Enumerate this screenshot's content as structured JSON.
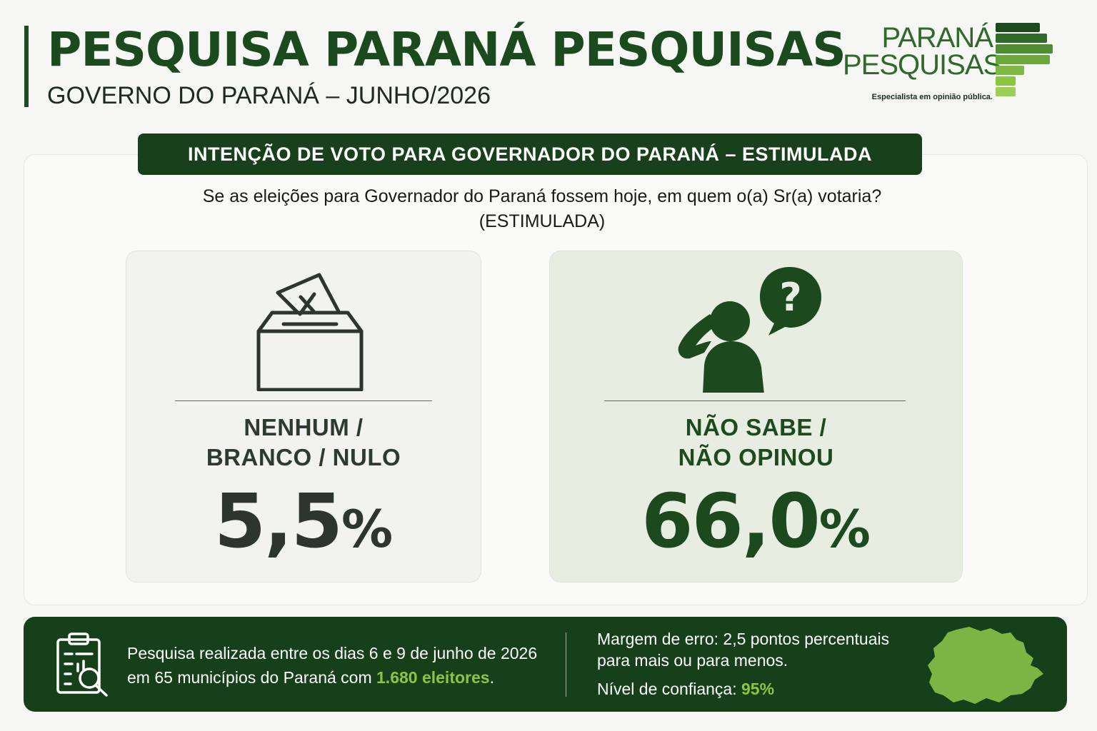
{
  "header": {
    "title": "PESQUISA PARANÁ PESQUISAS",
    "subtitle": "GOVERNO DO PARANÁ – JUNHO/2026"
  },
  "logo": {
    "line1": "PARANÁ",
    "line2": "PESQUISAS",
    "tagline": "Especialista em opinião pública."
  },
  "banner": {
    "title": "INTENÇÃO DE VOTO PARA GOVERNADOR DO PARANÁ – ESTIMULADA"
  },
  "question": {
    "line1": "Se as eleições para Governador do Paraná fossem hoje, em quem o(a) Sr(a) votaria?",
    "line2": "(ESTIMULADA)"
  },
  "cards": [
    {
      "icon": "ballot-box-icon",
      "label_line1": "NENHUM /",
      "label_line2": "BRANCO / NULO",
      "value": "5,5",
      "unit": "%"
    },
    {
      "icon": "confused-person-question-icon",
      "label_line1": "NÃO SABE /",
      "label_line2": "NÃO OPINOU",
      "value": "66,0",
      "unit": "%"
    }
  ],
  "footer": {
    "icon": "clipboard-search-icon",
    "line1": "Pesquisa realizada entre os dias 6 e 9 de junho de 2026",
    "line2_prefix": "em 65 municípios do Paraná com ",
    "line2_highlight": "1.680 eleitores",
    "line2_suffix": ".",
    "margin_text": "Margem de erro: 2,5 pontos percentuais para mais ou para menos.",
    "confidence_label": "Nível de confiança: ",
    "confidence_value": "95%",
    "map_icon": "parana-map-icon"
  },
  "colors": {
    "primary_green": "#1b4a1e",
    "dark_green": "#16401a",
    "highlight_green": "#8cc63f",
    "map_green": "#7db544"
  }
}
